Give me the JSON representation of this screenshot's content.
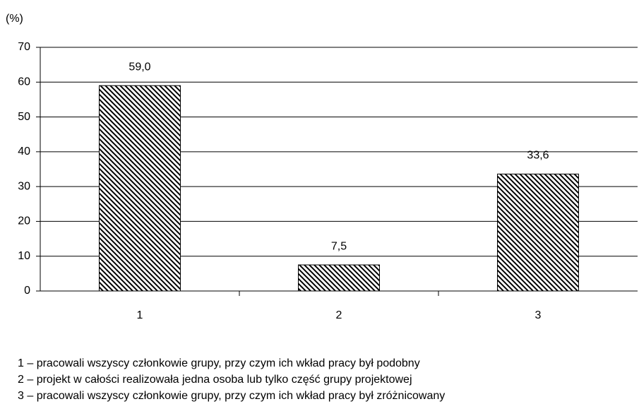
{
  "chart_data": {
    "type": "bar",
    "y_label": "(%)",
    "categories": [
      "1",
      "2",
      "3"
    ],
    "values": [
      59.0,
      7.5,
      33.6
    ],
    "value_labels": [
      "59,0",
      "7,5",
      "33,6"
    ],
    "color": "#000000",
    "ylim": [
      0,
      70
    ],
    "yticks": [
      0,
      10,
      20,
      30,
      40,
      50,
      60,
      70
    ],
    "grid": true,
    "notes": [
      "1 – pracowali wszyscy członkowie grupy, przy czym ich wkład pracy był podobny",
      "2 – projekt w całości realizowała jedna osoba lub tylko część grupy projektowej",
      "3 – pracowali wszyscy członkowie grupy, przy czym ich wkład pracy był zróżnicowany"
    ]
  }
}
